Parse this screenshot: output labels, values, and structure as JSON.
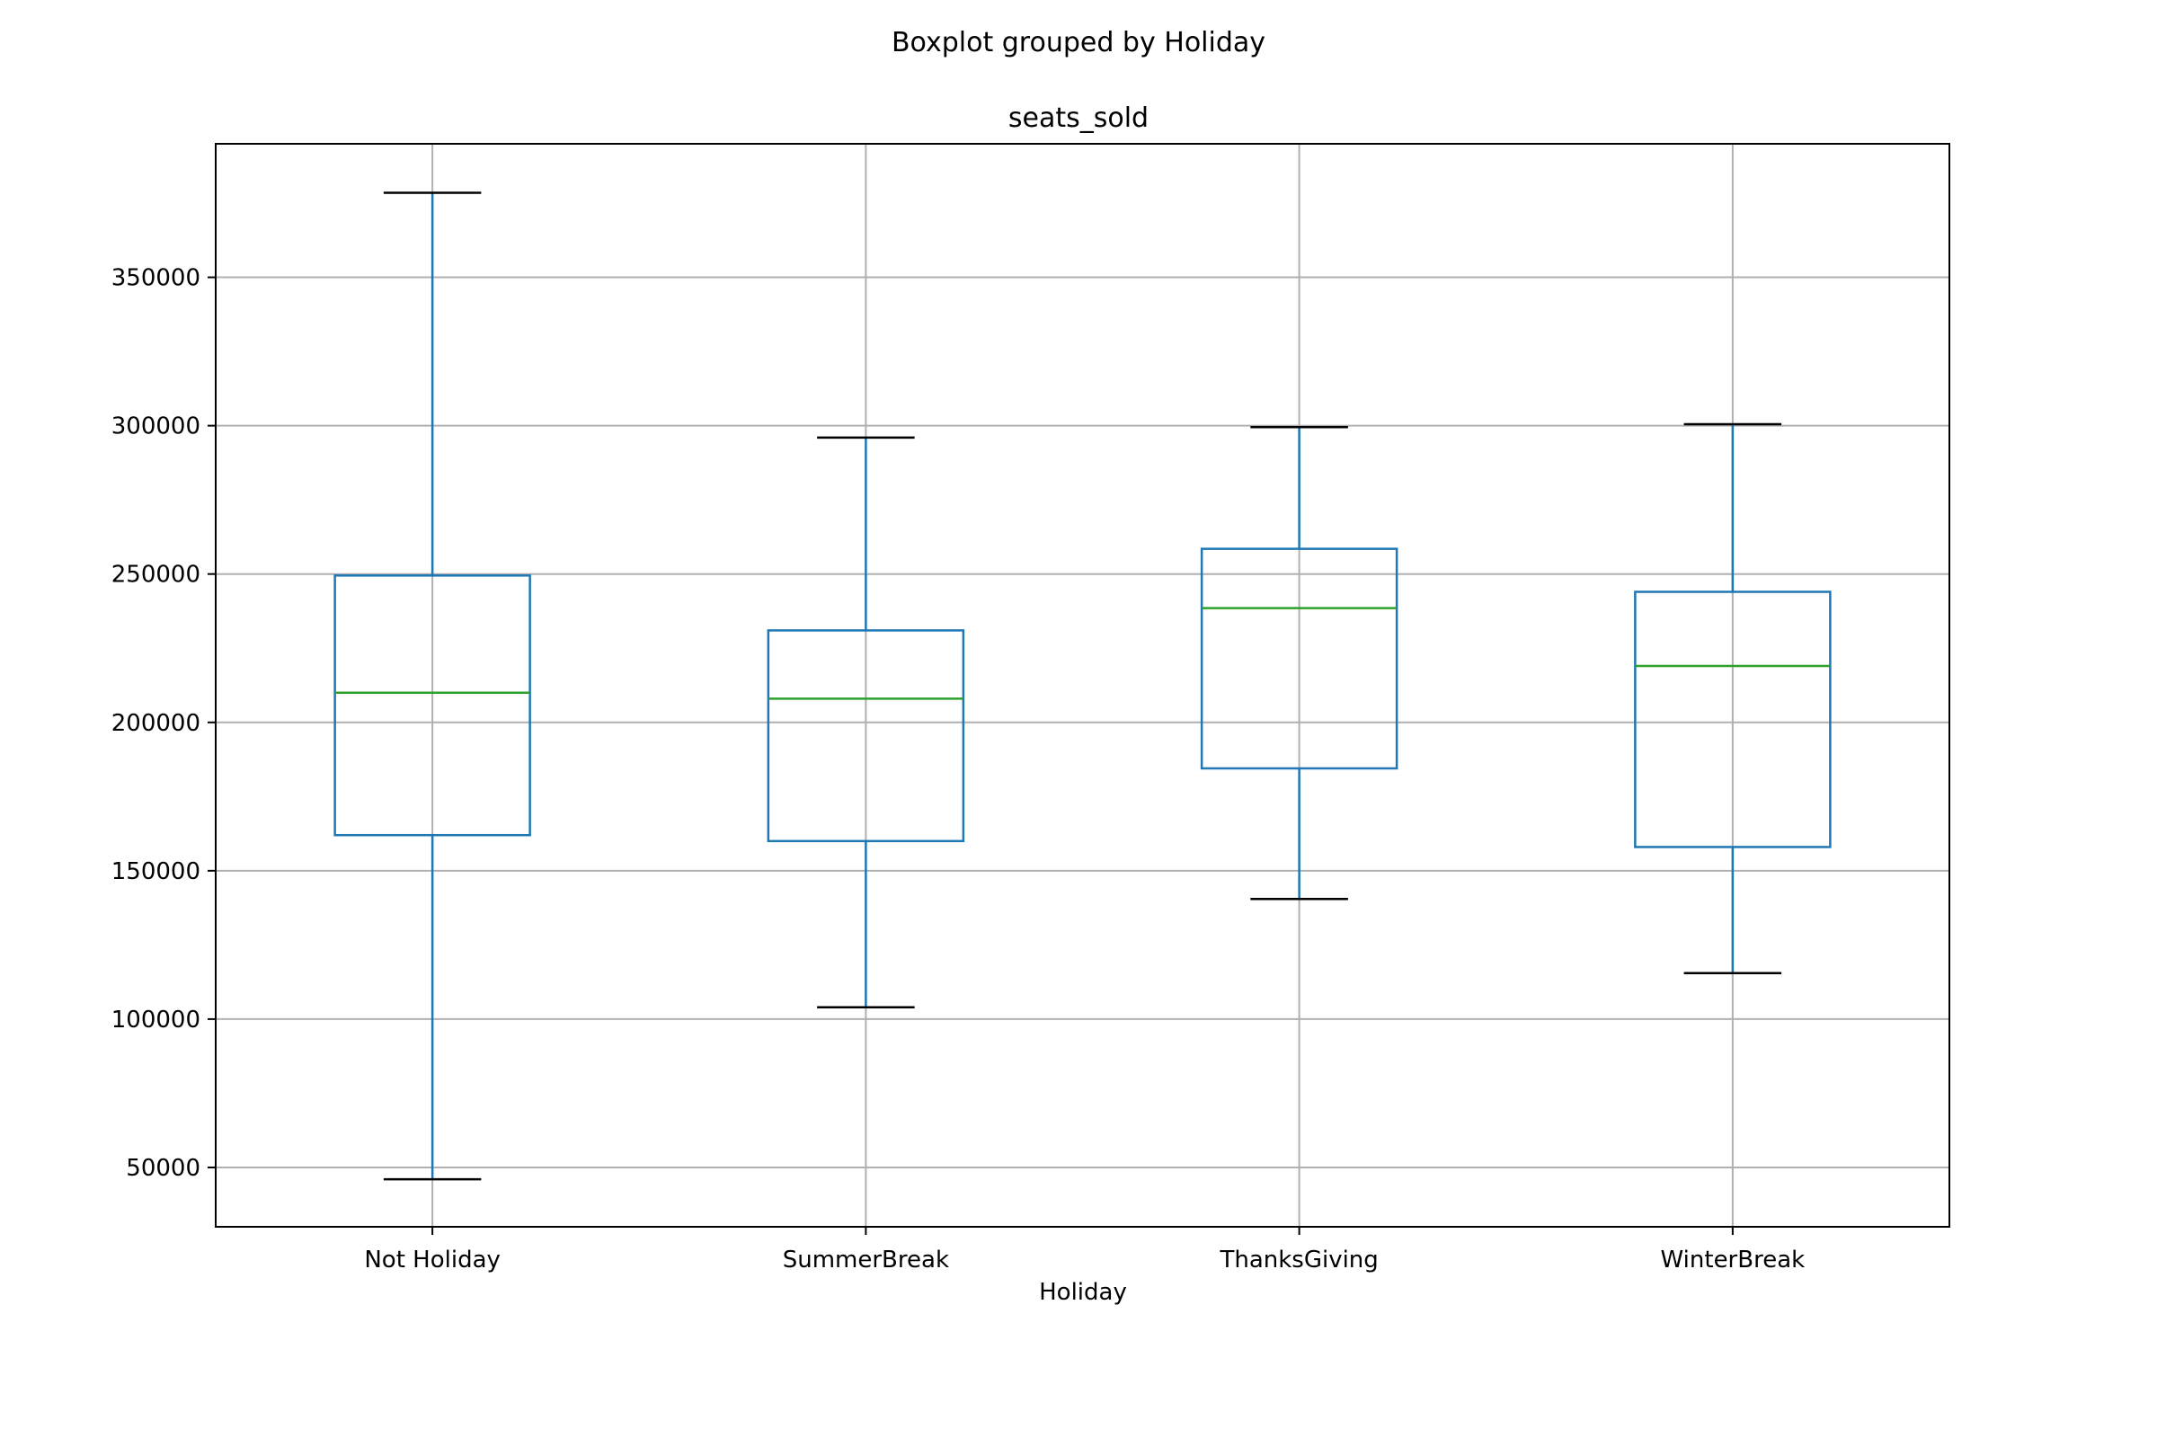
{
  "chart_data": {
    "type": "boxplot",
    "suptitle": "Boxplot grouped by Holiday",
    "title": "seats_sold",
    "xlabel": "Holiday",
    "ylabel": "",
    "ylim": [
      30000,
      395000
    ],
    "yticks": [
      50000,
      100000,
      150000,
      200000,
      250000,
      300000,
      350000
    ],
    "ytick_labels": [
      "50000",
      "100000",
      "150000",
      "200000",
      "250000",
      "300000",
      "350000"
    ],
    "grid": true,
    "categories": [
      "Not Holiday",
      "SummerBreak",
      "ThanksGiving",
      "WinterBreak"
    ],
    "boxes": [
      {
        "category": "Not Holiday",
        "whisker_low": 46000,
        "q1": 162000,
        "median": 210000,
        "q3": 249500,
        "whisker_high": 378500
      },
      {
        "category": "SummerBreak",
        "whisker_low": 104000,
        "q1": 160000,
        "median": 208000,
        "q3": 231000,
        "whisker_high": 296000
      },
      {
        "category": "ThanksGiving",
        "whisker_low": 140500,
        "q1": 184500,
        "median": 238500,
        "q3": 258500,
        "whisker_high": 299500
      },
      {
        "category": "WinterBreak",
        "whisker_low": 115500,
        "q1": 158000,
        "median": 219000,
        "q3": 244000,
        "whisker_high": 300500
      }
    ],
    "colors": {
      "box": "#1f77b4",
      "median": "#2ca02c",
      "cap": "#000000",
      "grid": "#b0b0b0",
      "frame": "#000000"
    }
  }
}
